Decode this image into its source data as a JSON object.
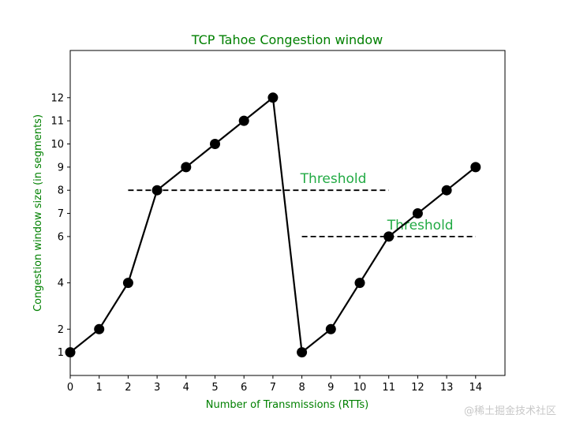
{
  "chart_data": {
    "type": "line",
    "title": "TCP Tahoe Congestion window",
    "xlabel": "Number of Transmissions (RTTs)",
    "ylabel": "Congestion window size (in segments)",
    "xlim": [
      0,
      15
    ],
    "ylim": [
      0,
      13.2
    ],
    "x_ticks": [
      "0",
      "1",
      "2",
      "3",
      "4",
      "5",
      "6",
      "7",
      "8",
      "9",
      "10",
      "11",
      "12",
      "13",
      "14"
    ],
    "y_ticks": [
      1,
      2,
      4,
      6,
      7,
      8,
      9,
      10,
      11,
      12
    ],
    "grid": false,
    "series": [
      {
        "x": [
          0,
          1,
          2,
          3,
          4,
          5,
          6,
          7,
          8,
          9,
          10,
          11,
          12,
          13,
          14
        ],
        "values": [
          1,
          2,
          4,
          8,
          9,
          10,
          11,
          12,
          1,
          2,
          4,
          6,
          7,
          8,
          9
        ],
        "color": "#000000"
      }
    ],
    "annotations": [
      {
        "text": "Threshold",
        "y": 8,
        "x_start": 2,
        "x_end": 11,
        "color": "#22aa44"
      },
      {
        "text": "Threshold",
        "y": 6,
        "x_start": 8,
        "x_end": 14,
        "color": "#22aa44"
      }
    ],
    "title_color": "#008000",
    "label_color": "#008000"
  },
  "watermark": "@稀土掘金技术社区"
}
